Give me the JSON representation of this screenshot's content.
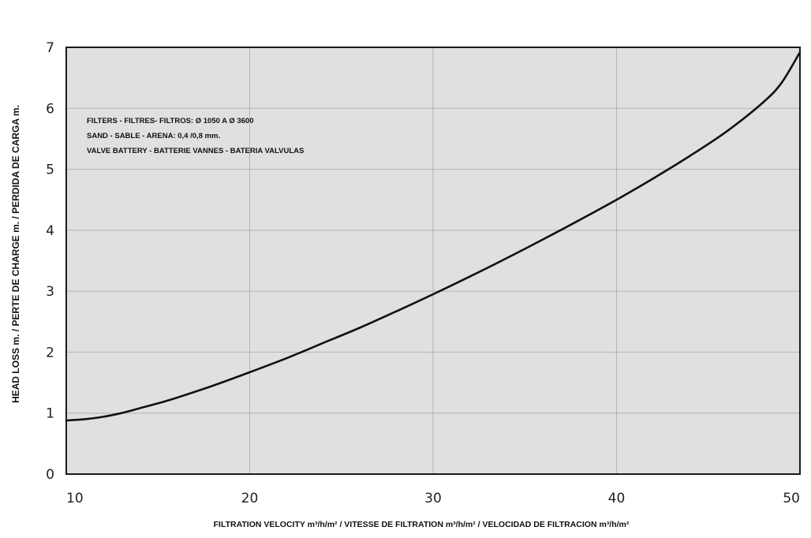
{
  "chart_data": {
    "type": "line",
    "title": "",
    "xlabel": "FILTRATION VELOCITY m³/h/m² / VITESSE DE FILTRATION m³/h/m² / VELOCIDAD DE FILTRACION m³/h/m²",
    "ylabel": "HEAD LOSS m. / PERTE DE CHARGE m. / PERDIDA DE CARGA m.",
    "xlim": [
      10,
      50
    ],
    "ylim": [
      0,
      7
    ],
    "x_ticks": [
      "10",
      "20",
      "30",
      "40",
      "50"
    ],
    "y_ticks": [
      "0",
      "1",
      "2",
      "3",
      "4",
      "5",
      "6",
      "7"
    ],
    "grid": true,
    "annotations": [
      "FILTERS - FILTRES- FILTROS: Ø 1050 A Ø 3600",
      "SAND - SABLE - ARENA: 0,4 /0,8 mm.",
      "VALVE BATTERY - BATTERIE VANNES - BATERIA VALVULAS"
    ],
    "series": [
      {
        "x": [
          10,
          11,
          12,
          13,
          14,
          15,
          16,
          18,
          20,
          22,
          24,
          26,
          28,
          30,
          32,
          34,
          36,
          38,
          40,
          42,
          44,
          46,
          48,
          49,
          50
        ],
        "values": [
          0.88,
          0.9,
          0.94,
          1.0,
          1.08,
          1.16,
          1.25,
          1.45,
          1.67,
          1.9,
          2.15,
          2.4,
          2.67,
          2.95,
          3.24,
          3.54,
          3.85,
          4.17,
          4.5,
          4.85,
          5.22,
          5.62,
          6.1,
          6.42,
          6.92
        ]
      }
    ],
    "colors": {
      "plot_background": "#e0e0e0",
      "grid": "#b4b4b4",
      "line": "#111111",
      "frame": "#1a1a1a"
    }
  }
}
